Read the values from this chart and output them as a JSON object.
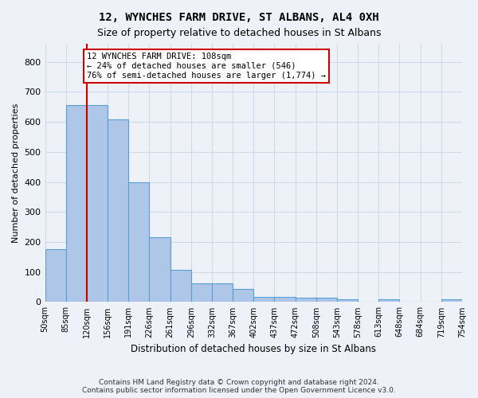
{
  "title1": "12, WYNCHES FARM DRIVE, ST ALBANS, AL4 0XH",
  "title2": "Size of property relative to detached houses in St Albans",
  "xlabel": "Distribution of detached houses by size in St Albans",
  "ylabel": "Number of detached properties",
  "footnote": "Contains HM Land Registry data © Crown copyright and database right 2024.\nContains public sector information licensed under the Open Government Licence v3.0.",
  "bin_labels": [
    "50sqm",
    "85sqm",
    "120sqm",
    "156sqm",
    "191sqm",
    "226sqm",
    "261sqm",
    "296sqm",
    "332sqm",
    "367sqm",
    "402sqm",
    "437sqm",
    "472sqm",
    "508sqm",
    "543sqm",
    "578sqm",
    "613sqm",
    "648sqm",
    "684sqm",
    "719sqm",
    "754sqm"
  ],
  "bar_values": [
    175,
    657,
    657,
    607,
    400,
    215,
    108,
    63,
    63,
    44,
    18,
    17,
    14,
    14,
    8,
    0,
    8,
    0,
    0,
    8
  ],
  "bar_color": "#aec6e8",
  "bar_edge_color": "#5a9fd4",
  "grid_color": "#d0d8e8",
  "background_color": "#eef2f8",
  "annotation_text": "12 WYNCHES FARM DRIVE: 108sqm\n← 24% of detached houses are smaller (546)\n76% of semi-detached houses are larger (1,774) →",
  "annotation_box_color": "#ffffff",
  "annotation_border_color": "#cc0000",
  "vline_color": "#cc0000",
  "vline_x": 1.5,
  "ylim": [
    0,
    860
  ],
  "yticks": [
    0,
    100,
    200,
    300,
    400,
    500,
    600,
    700,
    800
  ]
}
